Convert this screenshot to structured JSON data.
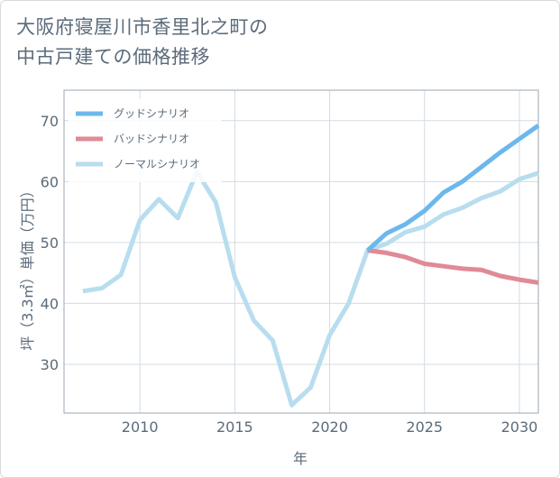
{
  "title": {
    "line1": "大阪府寝屋川市香里北之町の",
    "line2": "中古戸建ての価格推移"
  },
  "chart_data": {
    "type": "line",
    "title": "大阪府寝屋川市香里北之町の中古戸建ての価格推移",
    "xlabel": "年",
    "ylabel": "坪（3.3㎡）単価（万円）",
    "xlim": [
      2006,
      2031
    ],
    "ylim": [
      22,
      75
    ],
    "x_ticks": [
      2010,
      2015,
      2020,
      2025,
      2030
    ],
    "y_ticks": [
      30,
      40,
      50,
      60,
      70
    ],
    "grid": true,
    "legend_position": "top-left",
    "series": [
      {
        "name": "グッドシナリオ",
        "color": "#6cb8ec",
        "x": [
          2022,
          2023,
          2024,
          2025,
          2026,
          2027,
          2028,
          2029,
          2030,
          2031
        ],
        "values": [
          48.7,
          51.5,
          53.0,
          55.2,
          58.2,
          60.0,
          62.4,
          64.8,
          67.0,
          69.2
        ]
      },
      {
        "name": "バッドシナリオ",
        "color": "#e08a96",
        "x": [
          2022,
          2023,
          2024,
          2025,
          2026,
          2027,
          2028,
          2029,
          2030,
          2031
        ],
        "values": [
          48.7,
          48.3,
          47.6,
          46.5,
          46.1,
          45.7,
          45.5,
          44.5,
          43.9,
          43.4
        ]
      },
      {
        "name": "ノーマルシナリオ",
        "color": "#b8ddef",
        "x": [
          2007,
          2008,
          2009,
          2010,
          2011,
          2012,
          2013,
          2014,
          2015,
          2016,
          2017,
          2018,
          2019,
          2020,
          2021,
          2022,
          2023,
          2024,
          2025,
          2026,
          2027,
          2028,
          2029,
          2030,
          2031
        ],
        "values": [
          42.0,
          42.5,
          44.7,
          53.7,
          57.1,
          54.0,
          61.6,
          56.6,
          44.3,
          37.2,
          33.9,
          23.3,
          26.2,
          34.8,
          40.0,
          48.7,
          49.8,
          51.7,
          52.6,
          54.6,
          55.7,
          57.3,
          58.4,
          60.4,
          61.4
        ]
      }
    ]
  }
}
